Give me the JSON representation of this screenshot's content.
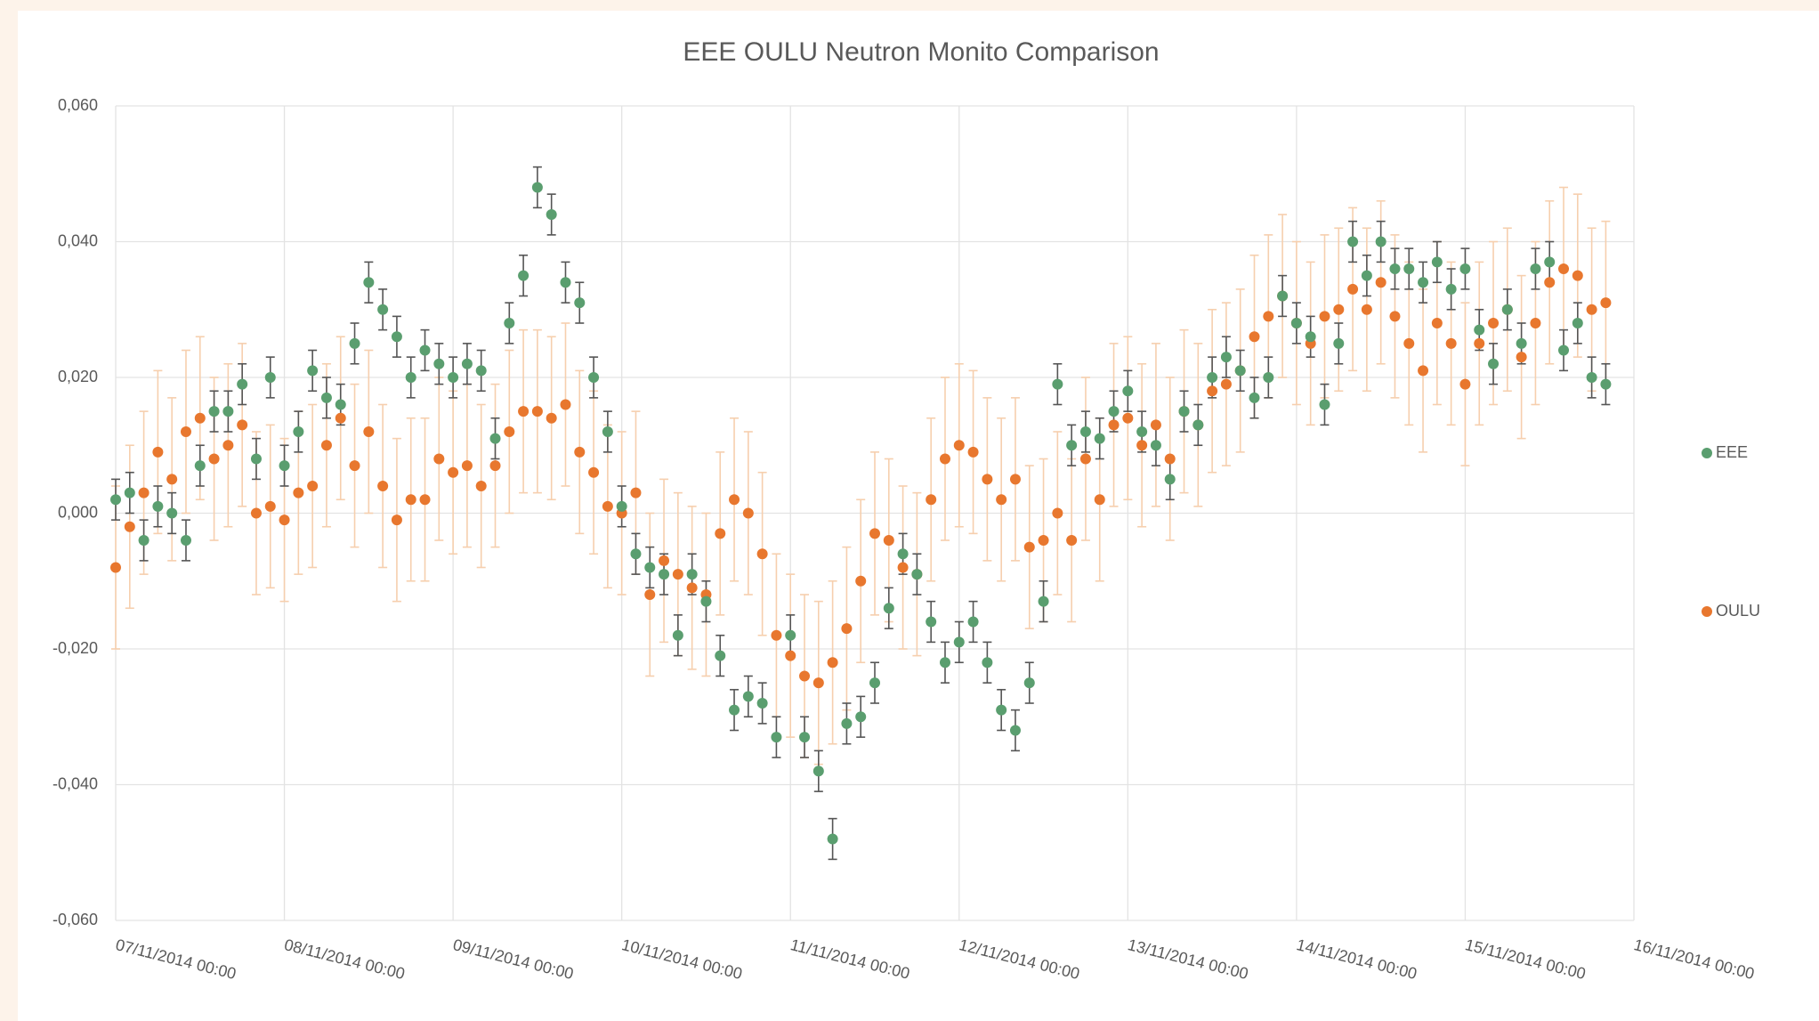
{
  "chart_data": {
    "type": "scatter",
    "title": "EEE OULU Neutron Monito Comparison",
    "x": [
      "07/11/2014 00:00",
      "07/11/2014 02:00",
      "07/11/2014 04:00",
      "07/11/2014 06:00",
      "07/11/2014 08:00",
      "07/11/2014 10:00",
      "07/11/2014 12:00",
      "07/11/2014 14:00",
      "07/11/2014 16:00",
      "07/11/2014 18:00",
      "07/11/2014 20:00",
      "07/11/2014 22:00",
      "08/11/2014 00:00",
      "08/11/2014 02:00",
      "08/11/2014 04:00",
      "08/11/2014 06:00",
      "08/11/2014 08:00",
      "08/11/2014 10:00",
      "08/11/2014 12:00",
      "08/11/2014 14:00",
      "08/11/2014 16:00",
      "08/11/2014 18:00",
      "08/11/2014 20:00",
      "08/11/2014 22:00",
      "09/11/2014 00:00",
      "09/11/2014 02:00",
      "09/11/2014 04:00",
      "09/11/2014 06:00",
      "09/11/2014 08:00",
      "09/11/2014 10:00",
      "09/11/2014 12:00",
      "09/11/2014 14:00",
      "09/11/2014 16:00",
      "09/11/2014 18:00",
      "09/11/2014 20:00",
      "09/11/2014 22:00",
      "10/11/2014 00:00",
      "10/11/2014 02:00",
      "10/11/2014 04:00",
      "10/11/2014 06:00",
      "10/11/2014 08:00",
      "10/11/2014 10:00",
      "10/11/2014 12:00",
      "10/11/2014 14:00",
      "10/11/2014 16:00",
      "10/11/2014 18:00",
      "10/11/2014 20:00",
      "10/11/2014 22:00",
      "11/11/2014 00:00",
      "11/11/2014 02:00",
      "11/11/2014 04:00",
      "11/11/2014 06:00",
      "11/11/2014 08:00",
      "11/11/2014 10:00",
      "11/11/2014 12:00",
      "11/11/2014 14:00",
      "11/11/2014 16:00",
      "11/11/2014 18:00",
      "11/11/2014 20:00",
      "11/11/2014 22:00",
      "12/11/2014 00:00",
      "12/11/2014 02:00",
      "12/11/2014 04:00",
      "12/11/2014 06:00",
      "12/11/2014 08:00",
      "12/11/2014 10:00",
      "12/11/2014 12:00",
      "12/11/2014 14:00",
      "12/11/2014 16:00",
      "12/11/2014 18:00",
      "12/11/2014 20:00",
      "12/11/2014 22:00",
      "13/11/2014 00:00",
      "13/11/2014 02:00",
      "13/11/2014 04:00",
      "13/11/2014 06:00",
      "13/11/2014 08:00",
      "13/11/2014 10:00",
      "13/11/2014 12:00",
      "13/11/2014 14:00",
      "13/11/2014 16:00",
      "13/11/2014 18:00",
      "13/11/2014 20:00",
      "13/11/2014 22:00",
      "14/11/2014 00:00",
      "14/11/2014 02:00",
      "14/11/2014 04:00",
      "14/11/2014 06:00",
      "14/11/2014 08:00",
      "14/11/2014 10:00",
      "14/11/2014 12:00",
      "14/11/2014 14:00",
      "14/11/2014 16:00",
      "14/11/2014 18:00",
      "14/11/2014 20:00",
      "14/11/2014 22:00",
      "15/11/2014 00:00",
      "15/11/2014 02:00",
      "15/11/2014 04:00",
      "15/11/2014 06:00",
      "15/11/2014 08:00",
      "15/11/2014 10:00",
      "15/11/2014 12:00",
      "15/11/2014 14:00",
      "15/11/2014 16:00",
      "15/11/2014 18:00",
      "15/11/2014 20:00"
    ],
    "series": [
      {
        "name": "EEE",
        "color": "#5a9e6f",
        "error_color": "#555555",
        "error": 0.003,
        "values": [
          0.002,
          0.003,
          -0.004,
          0.001,
          0.0,
          -0.004,
          0.007,
          0.015,
          0.015,
          0.019,
          0.008,
          0.02,
          0.007,
          0.012,
          0.021,
          0.017,
          0.016,
          0.025,
          0.034,
          0.03,
          0.026,
          0.02,
          0.024,
          0.022,
          0.02,
          0.022,
          0.021,
          0.011,
          0.028,
          0.035,
          0.048,
          0.044,
          0.034,
          0.031,
          0.02,
          0.012,
          0.001,
          -0.006,
          -0.008,
          -0.009,
          -0.018,
          -0.009,
          -0.013,
          -0.021,
          -0.029,
          -0.027,
          -0.028,
          -0.033,
          -0.018,
          -0.033,
          -0.038,
          -0.048,
          -0.031,
          -0.03,
          -0.025,
          -0.014,
          -0.006,
          -0.009,
          -0.016,
          -0.022,
          -0.019,
          -0.016,
          -0.022,
          -0.029,
          -0.032,
          -0.025,
          -0.013,
          0.019,
          0.01,
          0.012,
          0.011,
          0.015,
          0.018,
          0.012,
          0.01,
          0.005,
          0.015,
          0.013,
          0.02,
          0.023,
          0.021,
          0.017,
          0.02,
          0.032,
          0.028,
          0.026,
          0.016,
          0.025,
          0.04,
          0.035,
          0.04,
          0.036,
          0.036,
          0.034,
          0.037,
          0.033,
          0.036,
          0.027,
          0.022,
          0.03,
          0.025,
          0.036,
          0.037,
          0.024,
          0.028,
          0.02,
          0.019
        ]
      },
      {
        "name": "OULU",
        "color": "#e8772e",
        "error_color": "#f6cfae",
        "error": 0.012,
        "values": [
          -0.008,
          -0.002,
          0.003,
          0.009,
          0.005,
          0.012,
          0.014,
          0.008,
          0.01,
          0.013,
          0.0,
          0.001,
          -0.001,
          0.003,
          0.004,
          0.01,
          0.014,
          0.007,
          0.012,
          0.004,
          -0.001,
          0.002,
          0.002,
          0.008,
          0.006,
          0.007,
          0.004,
          0.007,
          0.012,
          0.015,
          0.015,
          0.014,
          0.016,
          0.009,
          0.006,
          0.001,
          0.0,
          0.003,
          -0.012,
          -0.007,
          -0.009,
          -0.011,
          -0.012,
          -0.003,
          0.002,
          0.0,
          -0.006,
          -0.018,
          -0.021,
          -0.024,
          -0.025,
          -0.022,
          -0.017,
          -0.01,
          -0.003,
          -0.004,
          -0.008,
          -0.009,
          0.002,
          0.008,
          0.01,
          0.009,
          0.005,
          0.002,
          0.005,
          -0.005,
          -0.004,
          0.0,
          -0.004,
          0.008,
          0.002,
          0.013,
          0.014,
          0.01,
          0.013,
          0.008,
          0.015,
          0.013,
          0.018,
          0.019,
          0.021,
          0.026,
          0.029,
          0.032,
          0.028,
          0.025,
          0.029,
          0.03,
          0.033,
          0.03,
          0.034,
          0.029,
          0.025,
          0.021,
          0.028,
          0.025,
          0.019,
          0.025,
          0.028,
          0.03,
          0.023,
          0.028,
          0.034,
          0.036,
          0.035,
          0.03,
          0.031
        ]
      }
    ],
    "xlim": [
      "07/11/2014 00:00",
      "16/11/2014 00:00"
    ],
    "xticks": [
      "07/11/2014 00:00",
      "08/11/2014 00:00",
      "09/11/2014 00:00",
      "10/11/2014 00:00",
      "11/11/2014 00:00",
      "12/11/2014 00:00",
      "13/11/2014 00:00",
      "14/11/2014 00:00",
      "15/11/2014 00:00",
      "16/11/2014 00:00"
    ],
    "ylim": [
      -0.06,
      0.06
    ],
    "yticks": [
      {
        "value": 0.06,
        "label": "0,060"
      },
      {
        "value": 0.04,
        "label": "0,040"
      },
      {
        "value": 0.02,
        "label": "0,020"
      },
      {
        "value": 0,
        "label": "0,000"
      },
      {
        "value": -0.02,
        "label": "-0,020"
      },
      {
        "value": -0.04,
        "label": "-0,040"
      },
      {
        "value": -0.06,
        "label": "-0,060"
      }
    ],
    "grid": true,
    "legend": "right"
  }
}
